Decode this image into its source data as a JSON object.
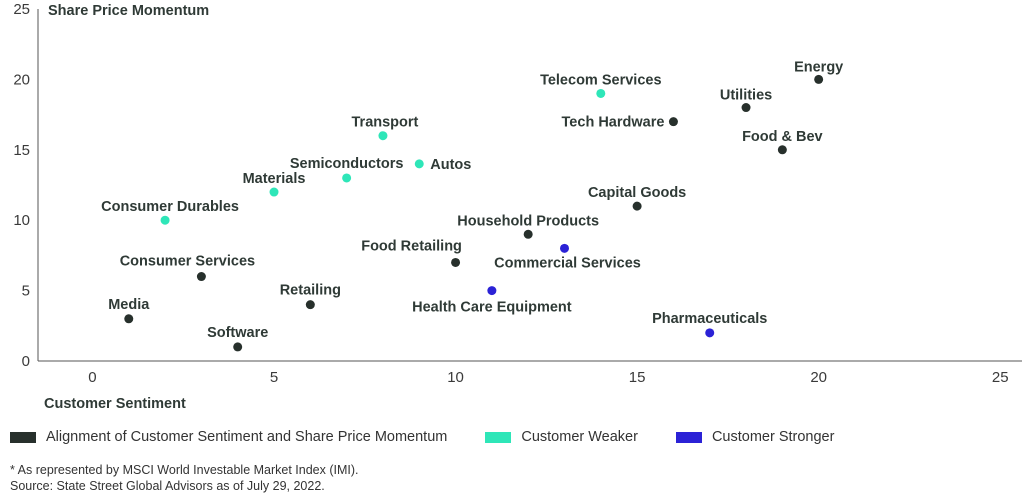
{
  "chart_data": {
    "type": "scatter",
    "ylabel": "Share Price Momentum",
    "xlabel": "Customer Sentiment",
    "xlim": [
      -1.5,
      25.6
    ],
    "ylim": [
      0,
      25
    ],
    "xticks": [
      0,
      5,
      10,
      15,
      20,
      25
    ],
    "yticks": [
      0,
      5,
      10,
      15,
      20,
      25
    ],
    "grid": false,
    "legend_position": "bottom",
    "series": [
      {
        "name": "Alignment of Customer Sentiment and Share Price Momentum",
        "color": "#27302c",
        "points": [
          {
            "label": "Energy",
            "x": 20,
            "y": 20
          },
          {
            "label": "Utilities",
            "x": 18,
            "y": 18
          },
          {
            "label": "Tech Hardware",
            "x": 16,
            "y": 17
          },
          {
            "label": "Food & Bev",
            "x": 19,
            "y": 15
          },
          {
            "label": "Capital Goods",
            "x": 15,
            "y": 11
          },
          {
            "label": "Household Products",
            "x": 12,
            "y": 9
          },
          {
            "label": "Food Retailing",
            "x": 10,
            "y": 7
          },
          {
            "label": "Consumer Services",
            "x": 3,
            "y": 6
          },
          {
            "label": "Retailing",
            "x": 6,
            "y": 4
          },
          {
            "label": "Media",
            "x": 1,
            "y": 3
          },
          {
            "label": "Software",
            "x": 4,
            "y": 1
          }
        ]
      },
      {
        "name": "Customer Weaker",
        "color": "#2ee6b8",
        "points": [
          {
            "label": "Telecom Services",
            "x": 14,
            "y": 19
          },
          {
            "label": "Transport",
            "x": 8,
            "y": 16
          },
          {
            "label": "Semiconductors",
            "x": 7,
            "y": 13
          },
          {
            "label": "Autos",
            "x": 9,
            "y": 14
          },
          {
            "label": "Materials",
            "x": 5,
            "y": 12
          },
          {
            "label": "Consumer Durables",
            "x": 2,
            "y": 10
          }
        ]
      },
      {
        "name": "Customer Stronger",
        "color": "#2b22d6",
        "points": [
          {
            "label": "Commercial Services",
            "x": 13,
            "y": 8
          },
          {
            "label": "Health Care Equipment",
            "x": 11,
            "y": 5
          },
          {
            "label": "Pharmaceuticals",
            "x": 17,
            "y": 2
          }
        ]
      }
    ]
  },
  "footnotes": {
    "line1": "* As represented by MSCI World Investable Market Index (IMI).",
    "line2": "Source: State Street Global Advisors as of July 29, 2022."
  }
}
